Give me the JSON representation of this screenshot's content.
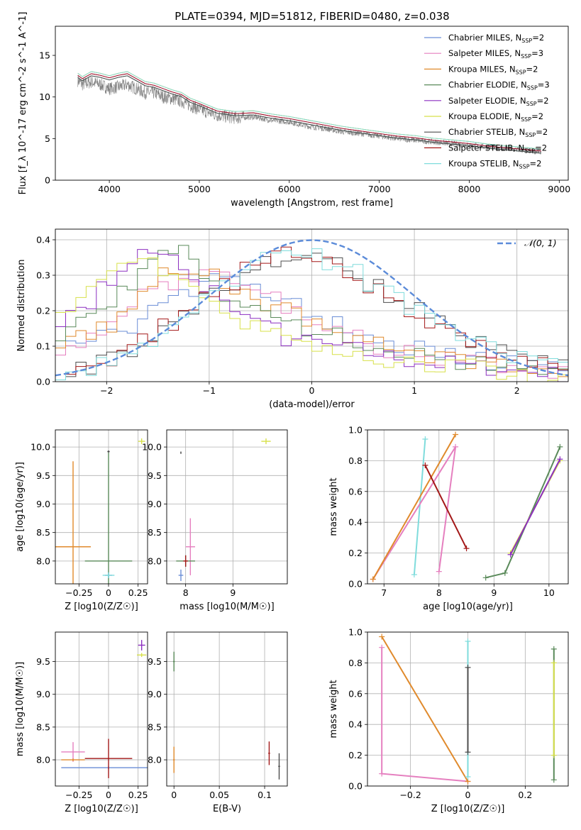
{
  "figure_title": "PLATE=0394, MJD=51812, FIBERID=0480, z=0.038",
  "models": [
    {
      "name": "Chabrier MILES",
      "nssp": "2",
      "color": "#6a8dd6"
    },
    {
      "name": "Salpeter MILES",
      "nssp": "3",
      "color": "#e57fbf"
    },
    {
      "name": "Kroupa MILES",
      "nssp": "2",
      "color": "#e08a2c"
    },
    {
      "name": "Chabrier ELODIE",
      "nssp": "3",
      "color": "#5a8a5a"
    },
    {
      "name": "Salpeter ELODIE",
      "nssp": "2",
      "color": "#8c2fc0"
    },
    {
      "name": "Kroupa ELODIE",
      "nssp": "2",
      "color": "#d7e04a"
    },
    {
      "name": "Chabrier STELIB",
      "nssp": "2",
      "color": "#4d4d4d"
    },
    {
      "name": "Salpeter STELIB",
      "nssp": "2",
      "color": "#a31818"
    },
    {
      "name": "Kroupa STELIB",
      "nssp": "2",
      "color": "#7fdcdc"
    }
  ],
  "chart_data": [
    {
      "id": "spectrum",
      "type": "line",
      "xlabel": "wavelength [Angstrom, rest frame]",
      "ylabel": "Flux [f_λ 10^-17 erg cm^-2 s^-1 A^-1]",
      "xlim": [
        3400,
        9100
      ],
      "ylim": [
        0,
        18.5
      ],
      "xticks": [
        4000,
        5000,
        6000,
        7000,
        8000,
        9000
      ],
      "yticks": [
        0,
        5,
        10,
        15
      ],
      "legend": "top-right",
      "data_color": "#808080",
      "data": {
        "x": [
          3650,
          3700,
          3800,
          3900,
          4000,
          4100,
          4200,
          4300,
          4400,
          4500,
          4600,
          4700,
          4800,
          4900,
          5000,
          5200,
          5400,
          5600,
          5800,
          6000,
          6200,
          6400,
          6600,
          6800,
          7000,
          7200,
          7400,
          7600,
          7800,
          8000,
          8200,
          8400,
          8600,
          8800
        ],
        "y": [
          12.0,
          11.5,
          11.8,
          11.5,
          11.0,
          11.2,
          11.5,
          11.0,
          10.5,
          10.5,
          10.0,
          9.8,
          9.5,
          9.0,
          8.5,
          7.8,
          7.5,
          7.6,
          7.2,
          7.0,
          6.5,
          6.2,
          5.8,
          5.6,
          5.3,
          5.0,
          4.8,
          4.6,
          4.4,
          4.2,
          4.0,
          3.8,
          3.6,
          3.4
        ]
      },
      "model_curve": {
        "x": [
          3650,
          3700,
          3800,
          3900,
          4000,
          4100,
          4200,
          4300,
          4400,
          4500,
          4600,
          4700,
          4800,
          4900,
          5000,
          5200,
          5400,
          5600,
          5800,
          6000,
          6200,
          6400,
          6600,
          6800,
          7000,
          7200,
          7400,
          7600,
          7800,
          8000,
          8200,
          8400,
          8600,
          8800
        ],
        "y": [
          12.6,
          12.2,
          12.8,
          12.6,
          12.3,
          12.6,
          12.8,
          12.2,
          11.6,
          11.4,
          11.0,
          10.6,
          10.3,
          9.6,
          9.2,
          8.3,
          8.0,
          8.1,
          7.7,
          7.4,
          7.0,
          6.6,
          6.2,
          5.9,
          5.6,
          5.3,
          5.1,
          4.8,
          4.6,
          4.4,
          4.1,
          3.9,
          3.7,
          3.5
        ]
      }
    },
    {
      "id": "residuals",
      "type": "line",
      "xlabel": "(data-model)/error",
      "ylabel": "Normed distribution",
      "xlim": [
        -2.5,
        2.5
      ],
      "ylim": [
        0,
        0.43
      ],
      "xticks": [
        -2,
        -1,
        0,
        1,
        2
      ],
      "yticks": [
        0.0,
        0.1,
        0.2,
        0.3,
        0.4
      ],
      "legend": "top-right",
      "reference": {
        "name": "𝒩(0, 1)",
        "color": "#5b8bd9"
      },
      "series": [
        {
          "model": 0,
          "values": [
            0.12,
            0.12,
            0.14,
            0.16,
            0.2,
            0.24,
            0.26,
            0.3,
            0.32,
            0.29,
            0.25,
            0.22,
            0.18,
            0.16,
            0.15,
            0.12,
            0.1,
            0.09,
            0.08,
            0.07,
            0.06,
            0.05,
            0.05,
            0.04,
            0.04
          ]
        },
        {
          "model": 1,
          "values": [
            0.1,
            0.12,
            0.15,
            0.2,
            0.25,
            0.28,
            0.3,
            0.33,
            0.3,
            0.27,
            0.24,
            0.2,
            0.18,
            0.15,
            0.13,
            0.1,
            0.09,
            0.08,
            0.07,
            0.06,
            0.05,
            0.05,
            0.04,
            0.04,
            0.03
          ]
        },
        {
          "model": 2,
          "values": [
            0.12,
            0.13,
            0.16,
            0.21,
            0.26,
            0.3,
            0.32,
            0.31,
            0.27,
            0.24,
            0.22,
            0.2,
            0.17,
            0.15,
            0.13,
            0.11,
            0.1,
            0.08,
            0.07,
            0.06,
            0.05,
            0.05,
            0.04,
            0.04,
            0.03
          ]
        },
        {
          "model": 3,
          "values": [
            0.14,
            0.18,
            0.22,
            0.28,
            0.34,
            0.38,
            0.36,
            0.3,
            0.25,
            0.22,
            0.2,
            0.17,
            0.15,
            0.13,
            0.11,
            0.09,
            0.08,
            0.07,
            0.06,
            0.05,
            0.05,
            0.04,
            0.04,
            0.03,
            0.03
          ]
        },
        {
          "model": 4,
          "values": [
            0.18,
            0.22,
            0.27,
            0.32,
            0.36,
            0.35,
            0.3,
            0.26,
            0.22,
            0.18,
            0.15,
            0.12,
            0.11,
            0.1,
            0.09,
            0.08,
            0.07,
            0.06,
            0.05,
            0.05,
            0.04,
            0.04,
            0.03,
            0.03,
            0.02
          ]
        },
        {
          "model": 5,
          "values": [
            0.22,
            0.26,
            0.3,
            0.34,
            0.35,
            0.32,
            0.28,
            0.24,
            0.2,
            0.17,
            0.15,
            0.12,
            0.1,
            0.09,
            0.08,
            0.07,
            0.06,
            0.05,
            0.05,
            0.04,
            0.04,
            0.03,
            0.03,
            0.02,
            0.02
          ]
        },
        {
          "model": 6,
          "values": [
            0.03,
            0.04,
            0.06,
            0.09,
            0.12,
            0.16,
            0.2,
            0.25,
            0.28,
            0.31,
            0.34,
            0.35,
            0.35,
            0.33,
            0.3,
            0.27,
            0.23,
            0.2,
            0.17,
            0.14,
            0.11,
            0.09,
            0.07,
            0.05,
            0.04
          ]
        },
        {
          "model": 7,
          "values": [
            0.03,
            0.04,
            0.06,
            0.09,
            0.12,
            0.16,
            0.21,
            0.25,
            0.28,
            0.32,
            0.35,
            0.36,
            0.35,
            0.33,
            0.31,
            0.27,
            0.23,
            0.19,
            0.16,
            0.13,
            0.1,
            0.08,
            0.06,
            0.05,
            0.04
          ]
        },
        {
          "model": 8,
          "values": [
            0.03,
            0.04,
            0.05,
            0.08,
            0.11,
            0.15,
            0.2,
            0.24,
            0.29,
            0.33,
            0.36,
            0.37,
            0.36,
            0.34,
            0.32,
            0.28,
            0.25,
            0.21,
            0.17,
            0.14,
            0.11,
            0.09,
            0.07,
            0.05,
            0.04
          ]
        }
      ]
    },
    {
      "id": "z-age",
      "type": "scatter",
      "xlabel": "Z [log10(Z/Z☉)]",
      "ylabel": "age  [log10(age/yr)]",
      "xlim": [
        -0.45,
        0.33
      ],
      "ylim": [
        7.6,
        10.3
      ],
      "xticks": [
        -0.25,
        0.0,
        0.25
      ],
      "yticks": [
        8.0,
        8.5,
        9.0,
        9.5,
        10.0
      ],
      "points": [
        {
          "model": 0,
          "x": 0.0,
          "y": 7.75,
          "xerr": 0.03,
          "yerr": 0.05
        },
        {
          "model": 2,
          "x": -0.3,
          "y": 8.25,
          "xerr": 0.15,
          "yerr": 1.5
        },
        {
          "model": 3,
          "x": 0.0,
          "y": 8.0,
          "xerr": 0.2,
          "yerr": 1.9
        },
        {
          "model": 6,
          "x": 0.0,
          "y": 9.92,
          "xerr": 0.01,
          "yerr": 0.02
        },
        {
          "model": 5,
          "x": 0.28,
          "y": 10.1,
          "xerr": 0.03,
          "yerr": 0.05
        },
        {
          "model": 8,
          "x": 0.0,
          "y": 7.75,
          "xerr": 0.05,
          "yerr": 0.05
        }
      ]
    },
    {
      "id": "mass-age",
      "type": "scatter",
      "xlabel": "mass [log10(M/M☉)]",
      "ylabel": "",
      "xlim": [
        7.6,
        10.15
      ],
      "ylim": [
        7.6,
        10.3
      ],
      "xticks": [
        8,
        9
      ],
      "yticks": [
        8.0,
        8.5,
        9.0,
        9.5,
        10.0
      ],
      "points": [
        {
          "model": 0,
          "x": 7.9,
          "y": 7.75,
          "xerr": 0.05,
          "yerr": 0.1
        },
        {
          "model": 1,
          "x": 8.1,
          "y": 8.25,
          "xerr": 0.1,
          "yerr": 0.5
        },
        {
          "model": 3,
          "x": 8.0,
          "y": 8.0,
          "xerr": 0.2,
          "yerr": 0.1
        },
        {
          "model": 7,
          "x": 8.0,
          "y": 8.0,
          "xerr": 0.05,
          "yerr": 0.1
        },
        {
          "model": 6,
          "x": 7.9,
          "y": 9.9,
          "xerr": 0.01,
          "yerr": 0.02
        },
        {
          "model": 5,
          "x": 9.7,
          "y": 10.1,
          "xerr": 0.1,
          "yerr": 0.05
        }
      ]
    },
    {
      "id": "age-weight",
      "type": "line",
      "xlabel": "age  [log10(age/yr)]",
      "ylabel": "mass weight",
      "xlim": [
        6.7,
        10.35
      ],
      "ylim": [
        0,
        1.0
      ],
      "xticks": [
        7,
        8,
        9,
        10
      ],
      "yticks": [
        0.0,
        0.2,
        0.4,
        0.6,
        0.8,
        1.0
      ],
      "series": [
        {
          "model": 8,
          "x": [
            7.55,
            7.75
          ],
          "y": [
            0.06,
            0.94
          ]
        },
        {
          "model": 1,
          "x": [
            8.0,
            8.3,
            6.8
          ],
          "y": [
            0.08,
            0.89,
            0.03
          ]
        },
        {
          "model": 2,
          "x": [
            6.8,
            8.3
          ],
          "y": [
            0.03,
            0.97
          ]
        },
        {
          "model": 7,
          "x": [
            7.75,
            8.5
          ],
          "y": [
            0.77,
            0.23
          ]
        },
        {
          "model": 3,
          "x": [
            8.85,
            9.2,
            10.2
          ],
          "y": [
            0.04,
            0.07,
            0.89
          ]
        },
        {
          "model": 5,
          "x": [
            9.3,
            10.2
          ],
          "y": [
            0.2,
            0.8
          ]
        },
        {
          "model": 4,
          "x": [
            9.3,
            10.2
          ],
          "y": [
            0.19,
            0.81
          ]
        }
      ]
    },
    {
      "id": "z-mass",
      "type": "scatter",
      "xlabel": "Z [log10(Z/Z☉)]",
      "ylabel": "mass [log10(M/M☉)]",
      "xlim": [
        -0.45,
        0.33
      ],
      "ylim": [
        7.6,
        9.95
      ],
      "xticks": [
        -0.25,
        0.0,
        0.25
      ],
      "yticks": [
        8.0,
        8.5,
        9.0,
        9.5
      ],
      "points": [
        {
          "model": 0,
          "x": 0.0,
          "y": 7.88,
          "xerr": 0.4,
          "yerr": 0.02
        },
        {
          "model": 1,
          "x": -0.3,
          "y": 8.12,
          "xerr": 0.1,
          "yerr": 0.15
        },
        {
          "model": 2,
          "x": -0.3,
          "y": 8.0,
          "xerr": 0.1,
          "yerr": 0.02
        },
        {
          "model": 7,
          "x": 0.0,
          "y": 8.02,
          "xerr": 0.2,
          "yerr": 0.3
        },
        {
          "model": 4,
          "x": 0.28,
          "y": 9.75,
          "xerr": 0.03,
          "yerr": 0.08
        },
        {
          "model": 5,
          "x": 0.28,
          "y": 9.6,
          "xerr": 0.04,
          "yerr": 0.03
        }
      ]
    },
    {
      "id": "ebv-mass",
      "type": "scatter",
      "xlabel": "E(B-V)",
      "ylabel": "",
      "xlim": [
        -0.008,
        0.125
      ],
      "ylim": [
        7.6,
        9.95
      ],
      "xticks": [
        0.0,
        0.05,
        0.1
      ],
      "yticks": [
        8.0,
        8.5,
        9.0,
        9.5
      ],
      "points": [
        {
          "model": 2,
          "x": 0.0,
          "y": 8.0,
          "xerr": 0.001,
          "yerr": 0.2
        },
        {
          "model": 3,
          "x": 0.0,
          "y": 9.5,
          "xerr": 0.001,
          "yerr": 0.15
        },
        {
          "model": 7,
          "x": 0.105,
          "y": 8.1,
          "xerr": 0.001,
          "yerr": 0.18
        },
        {
          "model": 6,
          "x": 0.116,
          "y": 7.9,
          "xerr": 0.001,
          "yerr": 0.2
        }
      ]
    },
    {
      "id": "z-weight",
      "type": "line",
      "xlabel": "Z [log10(Z/Z☉)]",
      "ylabel": "mass weight",
      "xlim": [
        -0.35,
        0.35
      ],
      "ylim": [
        0,
        1.0
      ],
      "xticks": [
        -0.2,
        0.0,
        0.2
      ],
      "yticks": [
        0.0,
        0.2,
        0.4,
        0.6,
        0.8,
        1.0
      ],
      "series": [
        {
          "model": 1,
          "x": [
            -0.3,
            -0.3,
            0.0
          ],
          "y": [
            0.9,
            0.08,
            0.03
          ]
        },
        {
          "model": 2,
          "x": [
            -0.3,
            0.0
          ],
          "y": [
            0.97,
            0.03
          ]
        },
        {
          "model": 8,
          "x": [
            0.0,
            0.0
          ],
          "y": [
            0.06,
            0.94
          ]
        },
        {
          "model": 6,
          "x": [
            0.0,
            0.0
          ],
          "y": [
            0.22,
            0.77
          ]
        },
        {
          "model": 3,
          "x": [
            0.3,
            0.3
          ],
          "y": [
            0.04,
            0.89
          ]
        },
        {
          "model": 5,
          "x": [
            0.3,
            0.3
          ],
          "y": [
            0.2,
            0.8
          ]
        }
      ]
    }
  ]
}
